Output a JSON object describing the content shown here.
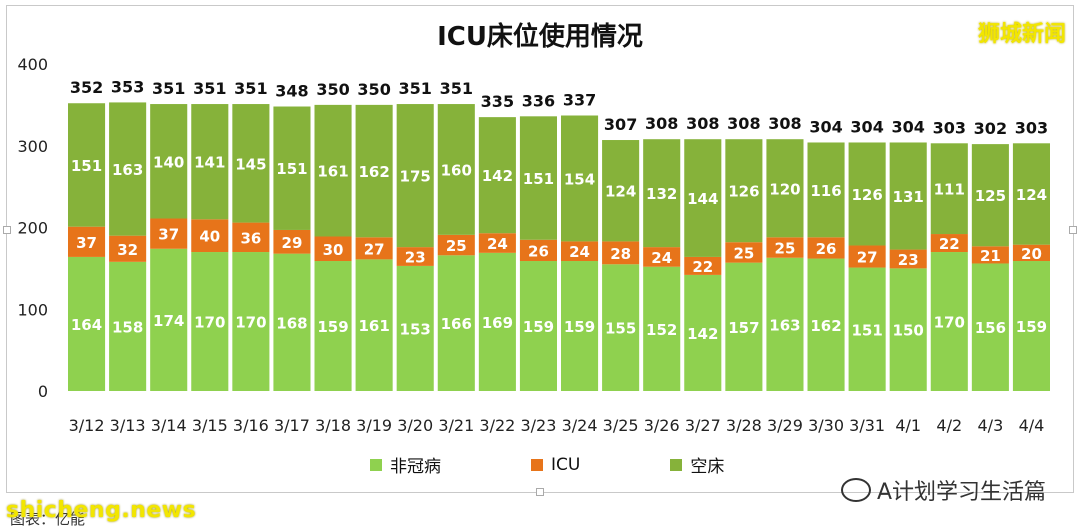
{
  "title": "ICU床位使用情况",
  "brand": "狮城新闻",
  "watermark_left": "shicheng.news",
  "watermark_right": "A计划学习生活篇",
  "source_text": "图表：亿能",
  "colors": {
    "non_covid": "#8fd14f",
    "icu": "#e7741a",
    "empty": "#86b23a",
    "axis_text": "#222222",
    "grid": "#d9d9d9"
  },
  "chart_data": {
    "type": "bar",
    "stacked": true,
    "title": "ICU床位使用情况",
    "xlabel": "",
    "ylabel": "",
    "ylim": [
      0,
      400
    ],
    "yticks": [
      0,
      100,
      200,
      300,
      400
    ],
    "grid": false,
    "legend_position": "bottom",
    "categories": [
      "3/12",
      "3/13",
      "3/14",
      "3/15",
      "3/16",
      "3/17",
      "3/18",
      "3/19",
      "3/20",
      "3/21",
      "3/22",
      "3/23",
      "3/24",
      "3/25",
      "3/26",
      "3/27",
      "3/28",
      "3/29",
      "3/30",
      "3/31",
      "4/1",
      "4/2",
      "4/3",
      "4/4"
    ],
    "series": [
      {
        "name": "非冠病",
        "color": "#8fd14f",
        "values": [
          164,
          158,
          174,
          170,
          170,
          168,
          159,
          161,
          153,
          166,
          169,
          159,
          159,
          155,
          152,
          142,
          157,
          163,
          162,
          151,
          150,
          170,
          156,
          159
        ]
      },
      {
        "name": "ICU",
        "color": "#e7741a",
        "values": [
          37,
          32,
          37,
          40,
          36,
          29,
          30,
          27,
          23,
          25,
          24,
          26,
          24,
          28,
          24,
          22,
          25,
          25,
          26,
          27,
          23,
          22,
          21,
          20
        ]
      },
      {
        "name": "空床",
        "color": "#86b23a",
        "values": [
          151,
          163,
          140,
          141,
          145,
          151,
          161,
          162,
          175,
          160,
          142,
          151,
          154,
          124,
          132,
          144,
          126,
          120,
          116,
          126,
          131,
          111,
          125,
          124
        ]
      }
    ],
    "totals": [
      352,
      353,
      351,
      351,
      351,
      348,
      350,
      350,
      351,
      351,
      335,
      336,
      337,
      307,
      308,
      308,
      308,
      308,
      304,
      304,
      304,
      303,
      302,
      303
    ]
  }
}
